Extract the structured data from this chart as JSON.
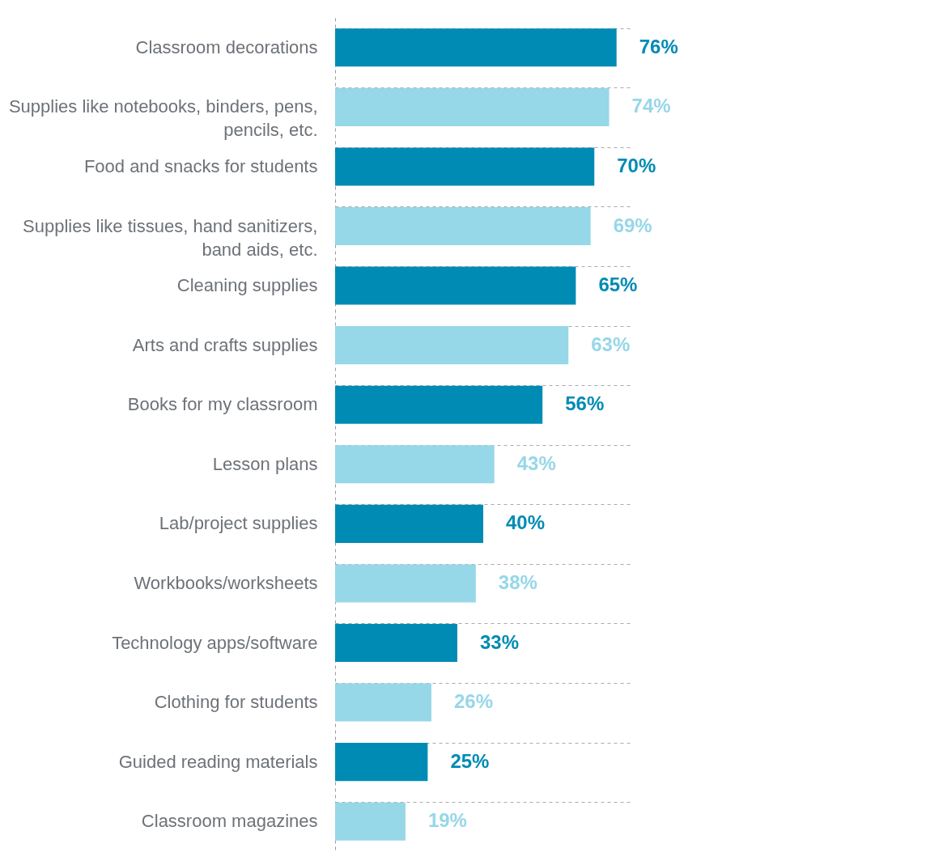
{
  "chart_data": {
    "type": "bar",
    "orientation": "horizontal",
    "categories": [
      "Classroom decorations",
      "Supplies like notebooks, binders, pens, pencils, etc.",
      "Food and snacks for students",
      "Supplies like tissues, hand sanitizers, band aids, etc.",
      "Cleaning supplies",
      "Arts and crafts supplies",
      "Books for my classroom",
      "Lesson plans",
      "Lab/project supplies",
      "Workbooks/worksheets",
      "Technology apps/software",
      "Clothing for students",
      "Guided reading materials",
      "Classroom magazines"
    ],
    "values": [
      76,
      74,
      70,
      69,
      65,
      63,
      56,
      43,
      40,
      38,
      33,
      26,
      25,
      19
    ],
    "value_labels": [
      "76%",
      "74%",
      "70%",
      "69%",
      "65%",
      "63%",
      "56%",
      "43%",
      "40%",
      "38%",
      "33%",
      "26%",
      "25%",
      "19%"
    ],
    "colors": [
      "#008bb4",
      "#96d7e8",
      "#008bb4",
      "#96d7e8",
      "#008bb4",
      "#96d7e8",
      "#008bb4",
      "#96d7e8",
      "#008bb4",
      "#96d7e8",
      "#008bb4",
      "#96d7e8",
      "#008bb4",
      "#96d7e8"
    ],
    "grid": "y",
    "legend": false,
    "tick_labels": "y"
  }
}
